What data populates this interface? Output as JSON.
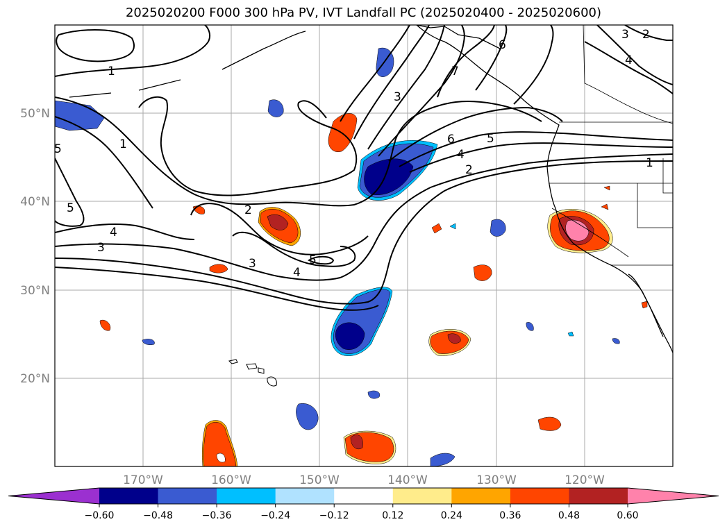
{
  "title": "2025020200 F000 300 hPa PV, IVT Landfall PC (2025020400 - 2025020600)",
  "lon_labels": [
    "170°W",
    "160°W",
    "150°W",
    "140°W",
    "130°W",
    "120°W"
  ],
  "lat_labels": [
    "50°N",
    "40°N",
    "30°N",
    "20°N"
  ],
  "contour_labels": [
    "1",
    "1",
    "5",
    "5",
    "4",
    "3",
    "2",
    "3",
    "4",
    "5",
    "3",
    "7",
    "6",
    "6",
    "5",
    "4",
    "2",
    "1",
    "3",
    "2",
    "4"
  ],
  "colorbar": {
    "tick_labels": [
      "−0.60",
      "−0.48",
      "−0.36",
      "−0.24",
      "−0.12",
      "0.12",
      "0.24",
      "0.36",
      "0.48",
      "0.60"
    ],
    "colors": [
      "#9b30d0",
      "#00008b",
      "#3a5bd1",
      "#00bfff",
      "#b0e2ff",
      "#ffffff",
      "#ffec8b",
      "#ffa500",
      "#ff4500",
      "#b22222",
      "#ff82ab"
    ]
  },
  "map_extent": {
    "lon": [
      -180,
      -110
    ],
    "lat": [
      10,
      60
    ]
  }
}
